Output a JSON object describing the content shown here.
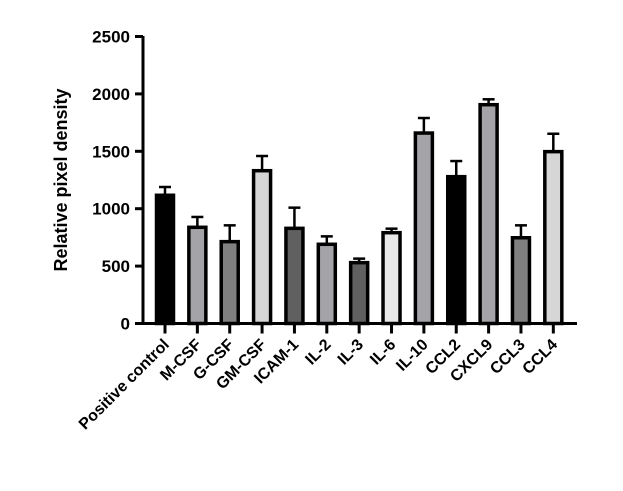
{
  "chart_data": {
    "type": "bar",
    "title": "",
    "xlabel": "",
    "ylabel": "Relative pixel density",
    "ylim": [
      0,
      2500
    ],
    "yticks": [
      0,
      500,
      1000,
      1500,
      2000,
      2500
    ],
    "grid": false,
    "categories": [
      "Positive control",
      "M-CSF",
      "G-CSF",
      "GM-CSF",
      "ICAM-1",
      "IL-2",
      "IL-3",
      "IL-6",
      "IL-10",
      "CCL2",
      "CXCL9",
      "CCL3",
      "CCL4"
    ],
    "values": [
      1117,
      838,
      713,
      1331,
      829,
      690,
      530,
      791,
      1659,
      1279,
      1906,
      747,
      1497
    ],
    "error_upper": [
      72,
      90,
      142,
      128,
      180,
      69,
      35,
      35,
      131,
      136,
      47,
      108,
      156
    ],
    "colors": [
      "#000000",
      "#a3a3a8",
      "#808080",
      "#d6d6d6",
      "#606060",
      "#a3a3a8",
      "#606060",
      "#e8e8e8",
      "#a3a3a8",
      "#000000",
      "#a3a3a8",
      "#808080",
      "#d6d6d6"
    ]
  }
}
